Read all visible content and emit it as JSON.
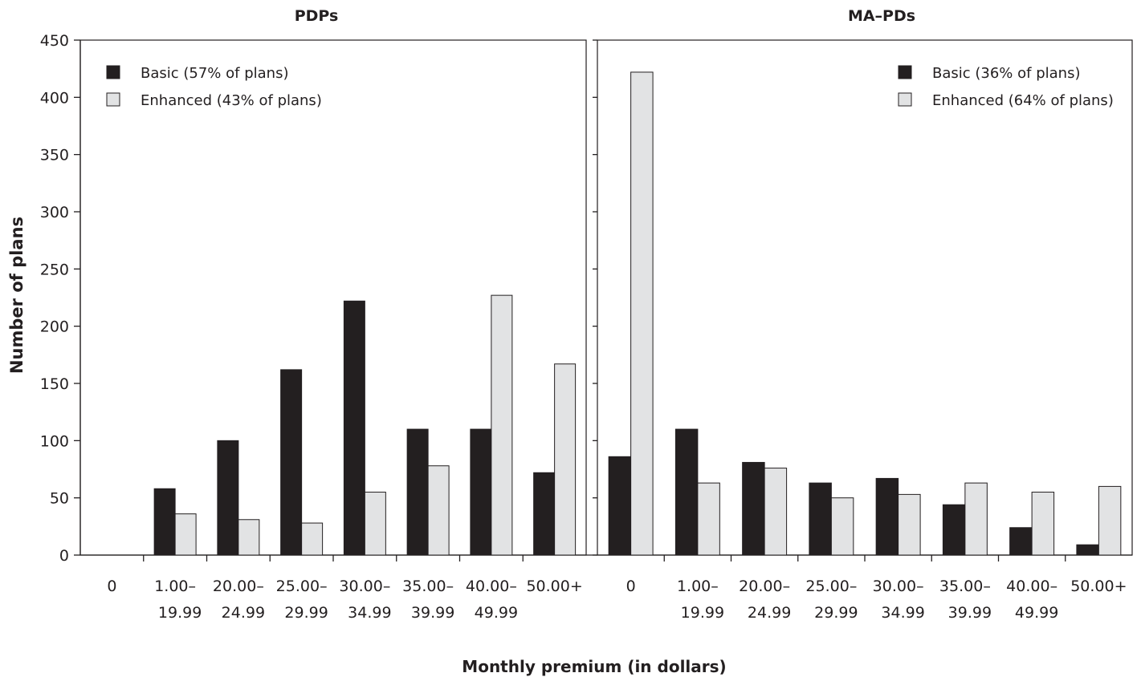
{
  "chart_data": {
    "type": "bar",
    "ylabel": "Number of plans",
    "xlabel": "Monthly premium (in dollars)",
    "ylim": [
      0,
      450
    ],
    "yticks": [
      0,
      50,
      100,
      150,
      200,
      250,
      300,
      350,
      400,
      450
    ],
    "colors": {
      "Basic": "#231f20",
      "Enhanced": "#e2e3e4"
    },
    "legend_position": "top",
    "panels": [
      {
        "title": "PDPs",
        "categories": [
          {
            "line1": "0",
            "line2": ""
          },
          {
            "line1": "1.00–",
            "line2": "19.99"
          },
          {
            "line1": "20.00–",
            "line2": "24.99"
          },
          {
            "line1": "25.00–",
            "line2": "29.99"
          },
          {
            "line1": "30.00–",
            "line2": "34.99"
          },
          {
            "line1": "35.00–",
            "line2": "39.99"
          },
          {
            "line1": "40.00–",
            "line2": "49.99"
          },
          {
            "line1": "50.00+",
            "line2": ""
          }
        ],
        "series": [
          {
            "name": "Basic (57% of plans)",
            "kind": "Basic",
            "values": [
              0,
              58,
              100,
              162,
              222,
              110,
              110,
              72
            ]
          },
          {
            "name": "Enhanced (43% of plans)",
            "kind": "Enhanced",
            "values": [
              0,
              36,
              31,
              28,
              55,
              78,
              227,
              167
            ]
          }
        ]
      },
      {
        "title": "MA–PDs",
        "categories": [
          {
            "line1": "0",
            "line2": ""
          },
          {
            "line1": "1.00–",
            "line2": "19.99"
          },
          {
            "line1": "20.00–",
            "line2": "24.99"
          },
          {
            "line1": "25.00–",
            "line2": "29.99"
          },
          {
            "line1": "30.00–",
            "line2": "34.99"
          },
          {
            "line1": "35.00–",
            "line2": "39.99"
          },
          {
            "line1": "40.00–",
            "line2": "49.99"
          },
          {
            "line1": "50.00+",
            "line2": ""
          }
        ],
        "series": [
          {
            "name": "Basic (36% of plans)",
            "kind": "Basic",
            "values": [
              86,
              110,
              81,
              63,
              67,
              44,
              24,
              9
            ]
          },
          {
            "name": "Enhanced (64% of plans)",
            "kind": "Enhanced",
            "values": [
              422,
              63,
              76,
              50,
              53,
              63,
              55,
              60
            ]
          }
        ]
      }
    ]
  }
}
